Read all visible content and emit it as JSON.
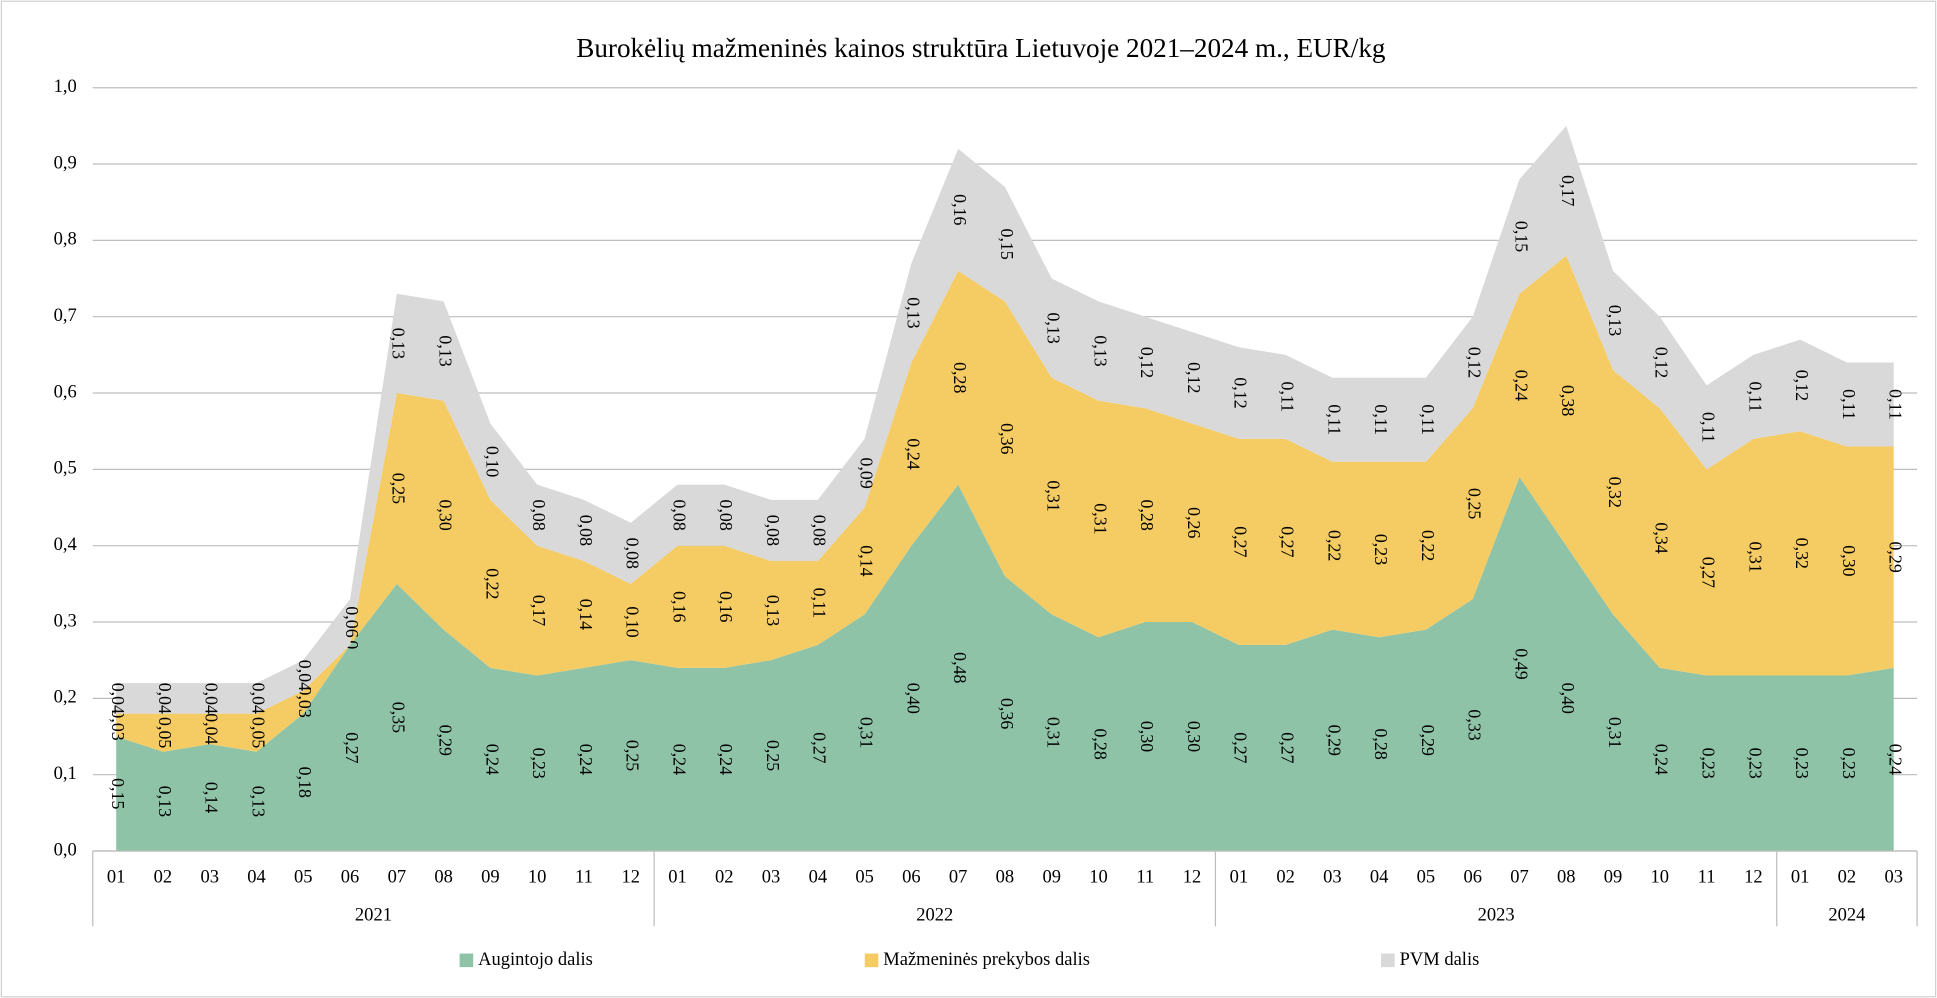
{
  "chart_data": {
    "type": "stacked_area",
    "title": "Burokėlių mažmeninės kainos struktūra Lietuvoje 2021–2024 m., EUR/kg",
    "category_groups": [
      {
        "name": "2021",
        "categories": [
          "01",
          "02",
          "03",
          "04",
          "05",
          "06",
          "07",
          "08",
          "09",
          "10",
          "11",
          "12"
        ]
      },
      {
        "name": "2022",
        "categories": [
          "01",
          "02",
          "03",
          "04",
          "05",
          "06",
          "07",
          "08",
          "09",
          "10",
          "11",
          "12"
        ]
      },
      {
        "name": "2023",
        "categories": [
          "01",
          "02",
          "03",
          "04",
          "05",
          "06",
          "07",
          "08",
          "09",
          "10",
          "11",
          "12"
        ]
      },
      {
        "name": "2024",
        "categories": [
          "01",
          "02",
          "03"
        ]
      }
    ],
    "series": [
      {
        "name": "Augintojo dalis",
        "color": "#8fc3a7",
        "values": [
          0.15,
          0.13,
          0.14,
          0.13,
          0.18,
          0.27,
          0.35,
          0.29,
          0.24,
          0.23,
          0.24,
          0.25,
          0.24,
          0.24,
          0.25,
          0.27,
          0.31,
          0.4,
          0.48,
          0.36,
          0.31,
          0.28,
          0.3,
          0.3,
          0.27,
          0.27,
          0.29,
          0.28,
          0.29,
          0.33,
          0.49,
          0.4,
          0.31,
          0.24,
          0.23,
          0.23,
          0.23,
          0.23,
          0.24
        ],
        "value_labels": [
          "0,15",
          "0,13",
          "0,14",
          "0,13",
          "0,18",
          "0,27",
          "0,35",
          "0,29",
          "0,24",
          "0,23",
          "0,24",
          "0,25",
          "0,24",
          "0,24",
          "0,25",
          "0,27",
          "0,31",
          "0,40",
          "0,48",
          "0,36",
          "0,31",
          "0,28",
          "0,30",
          "0,30",
          "0,27",
          "0,27",
          "0,29",
          "0,28",
          "0,29",
          "0,33",
          "0,49",
          "0,40",
          "0,31",
          "0,24",
          "0,23",
          "0,23",
          "0,23",
          "0,23",
          "0,24"
        ]
      },
      {
        "name": "Mažmeninės prekybos dalis",
        "color": "#f5cb63",
        "values": [
          0.03,
          0.05,
          0.04,
          0.05,
          0.03,
          0,
          0.25,
          0.3,
          0.22,
          0.17,
          0.14,
          0.1,
          0.16,
          0.16,
          0.13,
          0.11,
          0.14,
          0.24,
          0.28,
          0.36,
          0.31,
          0.31,
          0.28,
          0.26,
          0.27,
          0.27,
          0.22,
          0.23,
          0.22,
          0.25,
          0.24,
          0.38,
          0.32,
          0.34,
          0.27,
          0.31,
          0.32,
          0.3,
          0.29
        ],
        "value_labels": [
          "0,03",
          "0,05",
          "0,04",
          "0,05",
          "0,03",
          "0",
          "0,25",
          "0,30",
          "0,22",
          "0,17",
          "0,14",
          "0,10",
          "0,16",
          "0,16",
          "0,13",
          "0,11",
          "0,14",
          "0,24",
          "0,28",
          "0,36",
          "0,31",
          "0,31",
          "0,28",
          "0,26",
          "0,27",
          "0,27",
          "0,22",
          "0,23",
          "0,22",
          "0,25",
          "0,24",
          "0,38",
          "0,32",
          "0,34",
          "0,27",
          "0,31",
          "0,32",
          "0,30",
          "0,29"
        ]
      },
      {
        "name": "PVM dalis",
        "color": "#d9d9d9",
        "values": [
          0.04,
          0.04,
          0.04,
          0.04,
          0.04,
          0.06,
          0.13,
          0.13,
          0.1,
          0.08,
          0.08,
          0.08,
          0.08,
          0.08,
          0.08,
          0.08,
          0.09,
          0.13,
          0.16,
          0.15,
          0.13,
          0.13,
          0.12,
          0.12,
          0.12,
          0.11,
          0.11,
          0.11,
          0.11,
          0.12,
          0.15,
          0.17,
          0.13,
          0.12,
          0.11,
          0.11,
          0.12,
          0.11,
          0.11
        ],
        "value_labels": [
          "0,04",
          "0,04",
          "0,04",
          "0,04",
          "0,04",
          "0,06",
          "0,13",
          "0,13",
          "0,10",
          "0,08",
          "0,08",
          "0,08",
          "0,08",
          "0,08",
          "0,08",
          "0,08",
          "0,09",
          "0,13",
          "0,16",
          "0,15",
          "0,13",
          "0,13",
          "0,12",
          "0,12",
          "0,12",
          "0,11",
          "0,11",
          "0,11",
          "0,11",
          "0,12",
          "0,15",
          "0,17",
          "0,13",
          "0,12",
          "0,11",
          "0,11",
          "0,12",
          "0,11",
          "0,11"
        ]
      }
    ],
    "ylim": [
      0,
      1
    ],
    "yticks": [
      {
        "value": 0,
        "label": "0,0"
      },
      {
        "value": 0.1,
        "label": "0,1"
      },
      {
        "value": 0.2,
        "label": "0,2"
      },
      {
        "value": 0.3,
        "label": "0,3"
      },
      {
        "value": 0.4,
        "label": "0,4"
      },
      {
        "value": 0.5,
        "label": "0,5"
      },
      {
        "value": 0.6,
        "label": "0,6"
      },
      {
        "value": 0.7,
        "label": "0,7"
      },
      {
        "value": 0.8,
        "label": "0,8"
      },
      {
        "value": 0.9,
        "label": "0,9"
      },
      {
        "value": 1,
        "label": "1,0"
      }
    ],
    "grid": true,
    "legend": "bottom"
  }
}
